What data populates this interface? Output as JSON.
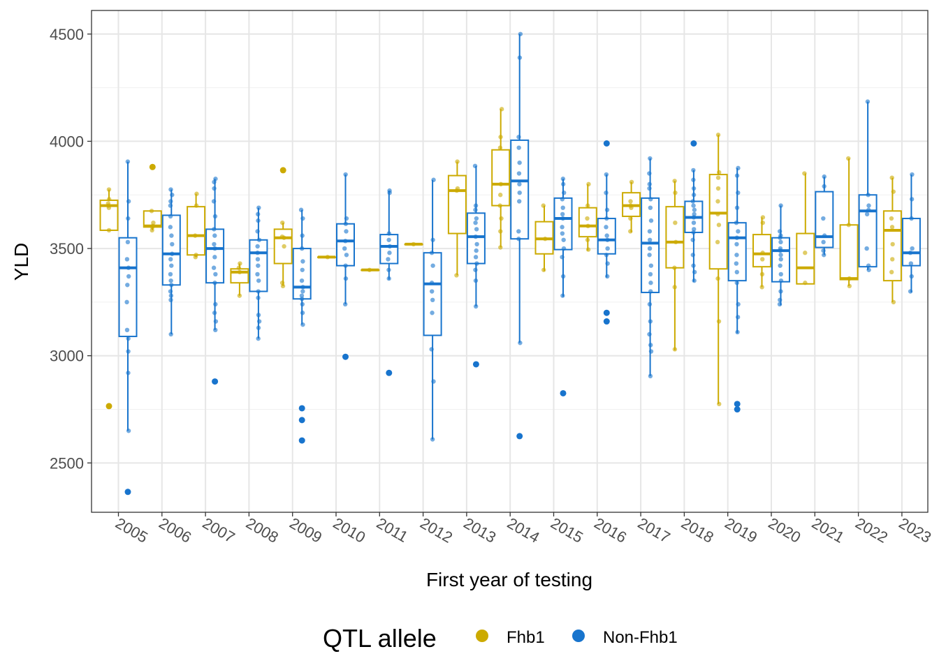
{
  "chart_data": {
    "type": "box",
    "xlabel": "First year of testing",
    "ylabel": "YLD",
    "ylim": [
      2270,
      4610
    ],
    "yticks": [
      2500,
      3000,
      3500,
      4000,
      4500
    ],
    "grid": true,
    "categories": [
      "2005",
      "2006",
      "2007",
      "2008",
      "2009",
      "2010",
      "2011",
      "2012",
      "2013",
      "2014",
      "2015",
      "2016",
      "2017",
      "2018",
      "2019",
      "2020",
      "2021",
      "2022",
      "2023"
    ],
    "legend": {
      "title": "QTL allele",
      "position": "bottom",
      "entries": [
        {
          "name": "Fhb1",
          "color": "#CCAA00"
        },
        {
          "name": "Non-Fhb1",
          "color": "#1874CD"
        }
      ]
    },
    "series": [
      {
        "name": "Fhb1",
        "color": "#CCAA00",
        "boxes": [
          {
            "cat": "2005",
            "q1": 3585,
            "median": 3700,
            "q3": 3725,
            "lower": 3585,
            "upper": 3775,
            "outliers": [
              2765
            ],
            "points": [
              3775,
              3730,
              3710,
              3700,
              3690,
              3585
            ]
          },
          {
            "cat": "2006",
            "q1": 3600,
            "median": 3605,
            "q3": 3675,
            "lower": 3585,
            "upper": 3675,
            "outliers": [
              3880
            ],
            "points": [
              3675,
              3620,
              3605,
              3600,
              3585
            ]
          },
          {
            "cat": "2007",
            "q1": 3470,
            "median": 3560,
            "q3": 3695,
            "lower": 3460,
            "upper": 3755,
            "outliers": [],
            "points": [
              3755,
              3700,
              3560,
              3470,
              3460
            ]
          },
          {
            "cat": "2008",
            "q1": 3340,
            "median": 3390,
            "q3": 3405,
            "lower": 3280,
            "upper": 3430,
            "outliers": [],
            "points": [
              3430,
              3410,
              3390,
              3280
            ]
          },
          {
            "cat": "2009",
            "q1": 3430,
            "median": 3550,
            "q3": 3590,
            "lower": 3325,
            "upper": 3620,
            "outliers": [
              3865
            ],
            "points": [
              3620,
              3555,
              3550,
              3510,
              3340,
              3325
            ]
          },
          {
            "cat": "2010",
            "q1": 3460,
            "median": 3460,
            "q3": 3460,
            "lower": 3460,
            "upper": 3460,
            "outliers": [],
            "points": [
              3460
            ]
          },
          {
            "cat": "2011",
            "q1": 3400,
            "median": 3400,
            "q3": 3400,
            "lower": 3400,
            "upper": 3400,
            "outliers": [],
            "points": [
              3400
            ]
          },
          {
            "cat": "2012",
            "q1": 3520,
            "median": 3520,
            "q3": 3520,
            "lower": 3520,
            "upper": 3520,
            "outliers": [],
            "points": [
              3520
            ]
          },
          {
            "cat": "2013",
            "q1": 3570,
            "median": 3770,
            "q3": 3840,
            "lower": 3375,
            "upper": 3905,
            "outliers": [],
            "points": [
              3905,
              3780,
              3770,
              3375
            ]
          },
          {
            "cat": "2014",
            "q1": 3700,
            "median": 3800,
            "q3": 3960,
            "lower": 3505,
            "upper": 4150,
            "outliers": [],
            "points": [
              4150,
              4020,
              3970,
              3800,
              3750,
              3700,
              3640,
              3580,
              3505
            ]
          },
          {
            "cat": "2015",
            "q1": 3475,
            "median": 3545,
            "q3": 3625,
            "lower": 3395,
            "upper": 3700,
            "outliers": [],
            "points": [
              3700,
              3545,
              3400
            ]
          },
          {
            "cat": "2016",
            "q1": 3555,
            "median": 3605,
            "q3": 3690,
            "lower": 3490,
            "upper": 3800,
            "outliers": [],
            "points": [
              3800,
              3700,
              3640,
              3605,
              3540,
              3495
            ]
          },
          {
            "cat": "2017",
            "q1": 3650,
            "median": 3700,
            "q3": 3760,
            "lower": 3575,
            "upper": 3810,
            "outliers": [],
            "points": [
              3810,
              3720,
              3700,
              3690,
              3640,
              3580
            ]
          },
          {
            "cat": "2018",
            "q1": 3410,
            "median": 3530,
            "q3": 3695,
            "lower": 3025,
            "upper": 3815,
            "outliers": [],
            "points": [
              3815,
              3760,
              3620,
              3530,
              3410,
              3320,
              3030
            ]
          },
          {
            "cat": "2019",
            "q1": 3405,
            "median": 3665,
            "q3": 3845,
            "lower": 2775,
            "upper": 4030,
            "outliers": [],
            "points": [
              4030,
              3855,
              3830,
              3780,
              3720,
              3660,
              3610,
              3530,
              3360,
              3160,
              2775
            ]
          },
          {
            "cat": "2020",
            "q1": 3415,
            "median": 3475,
            "q3": 3565,
            "lower": 3320,
            "upper": 3645,
            "outliers": [],
            "points": [
              3645,
              3620,
              3480,
              3450,
              3380,
              3320
            ]
          },
          {
            "cat": "2021",
            "q1": 3335,
            "median": 3410,
            "q3": 3570,
            "lower": 3335,
            "upper": 3850,
            "outliers": [],
            "points": [
              3850,
              3480,
              3340
            ]
          },
          {
            "cat": "2022",
            "q1": 3355,
            "median": 3360,
            "q3": 3610,
            "lower": 3325,
            "upper": 3920,
            "outliers": [],
            "points": [
              3920,
              3610,
              3360,
              3325
            ]
          },
          {
            "cat": "2023",
            "q1": 3350,
            "median": 3585,
            "q3": 3675,
            "lower": 3250,
            "upper": 3830,
            "outliers": [],
            "points": [
              3830,
              3765,
              3640,
              3600,
              3520,
              3450,
              3390,
              3250
            ]
          }
        ]
      },
      {
        "name": "Non-Fhb1",
        "color": "#1874CD",
        "boxes": [
          {
            "cat": "2005",
            "q1": 3090,
            "median": 3410,
            "q3": 3550,
            "lower": 2650,
            "upper": 3905,
            "outliers": [
              2365
            ],
            "points": [
              3905,
              3720,
              3640,
              3530,
              3450,
              3410,
              3370,
              3330,
              3250,
              3120,
              3080,
              3020,
              2920,
              2650
            ]
          },
          {
            "cat": "2006",
            "q1": 3330,
            "median": 3475,
            "q3": 3655,
            "lower": 3100,
            "upper": 3775,
            "outliers": [],
            "points": [
              3775,
              3750,
              3720,
              3700,
              3650,
              3600,
              3560,
              3520,
              3475,
              3450,
              3420,
              3380,
              3350,
              3330,
              3300,
              3280,
              3260,
              3100
            ]
          },
          {
            "cat": "2007",
            "q1": 3340,
            "median": 3500,
            "q3": 3590,
            "lower": 3120,
            "upper": 3825,
            "outliers": [
              2880
            ],
            "points": [
              3825,
              3810,
              3780,
              3720,
              3650,
              3590,
              3560,
              3520,
              3500,
              3460,
              3410,
              3380,
              3340,
              3240,
              3200,
              3160,
              3120
            ]
          },
          {
            "cat": "2008",
            "q1": 3300,
            "median": 3480,
            "q3": 3540,
            "lower": 3080,
            "upper": 3690,
            "outliers": [],
            "points": [
              3690,
              3660,
              3630,
              3580,
              3540,
              3510,
              3480,
              3450,
              3420,
              3380,
              3350,
              3300,
              3270,
              3190,
              3160,
              3130,
              3080
            ]
          },
          {
            "cat": "2009",
            "q1": 3265,
            "median": 3320,
            "q3": 3500,
            "lower": 3145,
            "upper": 3680,
            "outliers": [
              2755,
              2700,
              2605
            ],
            "points": [
              3680,
              3640,
              3560,
              3500,
              3440,
              3400,
              3350,
              3320,
              3300,
              3280,
              3265,
              3240,
              3200,
              3145
            ]
          },
          {
            "cat": "2010",
            "q1": 3420,
            "median": 3535,
            "q3": 3615,
            "lower": 3240,
            "upper": 3845,
            "outliers": [
              2995
            ],
            "points": [
              3845,
              3640,
              3615,
              3580,
              3535,
              3500,
              3470,
              3420,
              3360,
              3240
            ]
          },
          {
            "cat": "2011",
            "q1": 3430,
            "median": 3510,
            "q3": 3565,
            "lower": 3355,
            "upper": 3770,
            "outliers": [
              2920
            ],
            "points": [
              3770,
              3760,
              3570,
              3540,
              3510,
              3480,
              3450,
              3400,
              3360
            ]
          },
          {
            "cat": "2012",
            "q1": 3095,
            "median": 3335,
            "q3": 3480,
            "lower": 2610,
            "upper": 3820,
            "outliers": [],
            "points": [
              3820,
              3540,
              3480,
              3420,
              3340,
              3300,
              3260,
              3200,
              3030,
              2880,
              2610
            ]
          },
          {
            "cat": "2013",
            "q1": 3430,
            "median": 3555,
            "q3": 3665,
            "lower": 3230,
            "upper": 3885,
            "outliers": [
              2960
            ],
            "points": [
              3885,
              3700,
              3680,
              3640,
              3620,
              3590,
              3555,
              3520,
              3490,
              3460,
              3430,
              3400,
              3350,
              3230
            ]
          },
          {
            "cat": "2014",
            "q1": 3545,
            "median": 3815,
            "q3": 4005,
            "lower": 3060,
            "upper": 4500,
            "outliers": [
              2625
            ],
            "points": [
              4500,
              4390,
              4020,
              3970,
              3900,
              3850,
              3800,
              3760,
              3720,
              3580,
              3545,
              3060
            ]
          },
          {
            "cat": "2015",
            "q1": 3495,
            "median": 3640,
            "q3": 3735,
            "lower": 3275,
            "upper": 3825,
            "outliers": [
              2825
            ],
            "points": [
              3825,
              3800,
              3760,
              3730,
              3690,
              3660,
              3640,
              3600,
              3570,
              3540,
              3500,
              3460,
              3370,
              3280
            ]
          },
          {
            "cat": "2016",
            "q1": 3475,
            "median": 3540,
            "q3": 3640,
            "lower": 3365,
            "upper": 3845,
            "outliers": [
              3990,
              3200,
              3160
            ],
            "points": [
              3845,
              3760,
              3680,
              3640,
              3600,
              3560,
              3540,
              3500,
              3470,
              3430,
              3370
            ]
          },
          {
            "cat": "2017",
            "q1": 3295,
            "median": 3525,
            "q3": 3735,
            "lower": 2905,
            "upper": 3920,
            "outliers": [],
            "points": [
              3920,
              3850,
              3800,
              3780,
              3730,
              3690,
              3630,
              3580,
              3540,
              3500,
              3470,
              3420,
              3380,
              3340,
              3300,
              3240,
              3160,
              3100,
              3050,
              3020,
              2905
            ]
          },
          {
            "cat": "2018",
            "q1": 3575,
            "median": 3645,
            "q3": 3720,
            "lower": 3345,
            "upper": 3865,
            "outliers": [
              3990
            ],
            "points": [
              3865,
              3820,
              3780,
              3750,
              3720,
              3700,
              3680,
              3660,
              3645,
              3620,
              3590,
              3575,
              3540,
              3470,
              3420,
              3390,
              3350
            ]
          },
          {
            "cat": "2019",
            "q1": 3350,
            "median": 3550,
            "q3": 3620,
            "lower": 3105,
            "upper": 3875,
            "outliers": [
              2775,
              2750
            ],
            "points": [
              3875,
              3840,
              3760,
              3690,
              3620,
              3580,
              3550,
              3520,
              3470,
              3430,
              3390,
              3340,
              3240,
              3180,
              3110
            ]
          },
          {
            "cat": "2020",
            "q1": 3345,
            "median": 3490,
            "q3": 3550,
            "lower": 3235,
            "upper": 3700,
            "outliers": [],
            "points": [
              3700,
              3580,
              3560,
              3550,
              3530,
              3500,
              3490,
              3470,
              3450,
              3420,
              3380,
              3350,
              3300,
              3260,
              3240
            ]
          },
          {
            "cat": "2021",
            "q1": 3505,
            "median": 3555,
            "q3": 3765,
            "lower": 3470,
            "upper": 3835,
            "outliers": [],
            "points": [
              3835,
              3790,
              3640,
              3560,
              3530,
              3490,
              3470
            ]
          },
          {
            "cat": "2022",
            "q1": 3415,
            "median": 3675,
            "q3": 3750,
            "lower": 3400,
            "upper": 4185,
            "outliers": [],
            "points": [
              4185,
              3750,
              3700,
              3680,
              3660,
              3500,
              3420,
              3400
            ]
          },
          {
            "cat": "2023",
            "q1": 3420,
            "median": 3480,
            "q3": 3640,
            "lower": 3295,
            "upper": 3845,
            "outliers": [],
            "points": [
              3845,
              3730,
              3640,
              3500,
              3480,
              3430,
              3370,
              3300
            ]
          }
        ]
      }
    ]
  }
}
